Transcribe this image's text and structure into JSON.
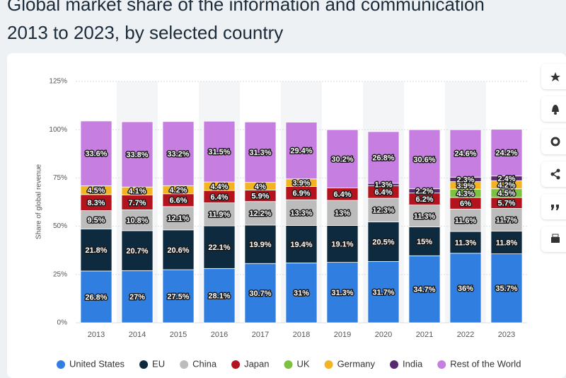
{
  "chart_data": {
    "type": "stacked_bar",
    "title": "Global market share of the information and communication",
    "subtitle": "2013 to 2023, by selected country",
    "y_label": "Share of global revenue",
    "categories": [
      "2013",
      "2014",
      "2015",
      "2016",
      "2017",
      "2018",
      "2019",
      "2020",
      "2021",
      "2022",
      "2023"
    ],
    "ylim": [
      0,
      125
    ],
    "yticks": [
      {
        "value": 0,
        "label": "0%"
      },
      {
        "value": 25,
        "label": "25%"
      },
      {
        "value": 50,
        "label": "50%"
      },
      {
        "value": 75,
        "label": "75%"
      },
      {
        "value": 100,
        "label": "100%"
      },
      {
        "value": 125,
        "label": "125%"
      }
    ],
    "grid": true,
    "legend": "bottom",
    "series": [
      {
        "name": "United States",
        "color": "#2f7ee0",
        "values": [
          26.8,
          27,
          27.5,
          28.1,
          30.7,
          31,
          31.3,
          31.7,
          34.7,
          36,
          35.7
        ],
        "value_labels": [
          "26.8%",
          "27%",
          "27.5%",
          "28.1%",
          "30.7%",
          "31%",
          "31.3%",
          "31.7%",
          "34.7%",
          "36%",
          "35.7%"
        ]
      },
      {
        "name": "EU",
        "color": "#0e2a3e",
        "values": [
          21.8,
          20.7,
          20.6,
          22.1,
          19.9,
          19.4,
          19.1,
          20.5,
          15,
          11.3,
          11.8
        ],
        "value_labels": [
          "21.8%",
          "20.7%",
          "20.6%",
          "22.1%",
          "19.9%",
          "19.4%",
          "19.1%",
          "20.5%",
          "15%",
          "11.3%",
          "11.8%"
        ]
      },
      {
        "name": "China",
        "color": "#bcbcbc",
        "values": [
          9.5,
          10.8,
          12.1,
          11.9,
          12.2,
          13.3,
          13,
          12.3,
          11.3,
          11.6,
          11.7
        ],
        "value_labels": [
          "9.5%",
          "10.8%",
          "12.1%",
          "11.9%",
          "12.2%",
          "13.3%",
          "13%",
          "12.3%",
          "11.3%",
          "11.6%",
          "11.7%"
        ]
      },
      {
        "name": "Japan",
        "color": "#b3131d",
        "values": [
          8.3,
          7.7,
          6.6,
          6.4,
          5.9,
          6.9,
          6.4,
          6.4,
          6.2,
          6,
          5.7
        ],
        "value_labels": [
          "8.3%",
          "7.7%",
          "6.6%",
          "6.4%",
          "5.9%",
          "6.9%",
          "6.4%",
          "6.4%",
          "6.2%",
          "6%",
          "5.7%"
        ]
      },
      {
        "name": "UK",
        "color": "#7cc142",
        "values": [
          null,
          null,
          null,
          null,
          null,
          null,
          null,
          null,
          null,
          4.3,
          4.5
        ],
        "value_labels": [
          null,
          null,
          null,
          null,
          null,
          null,
          null,
          null,
          null,
          "4.3%",
          "4.5%"
        ]
      },
      {
        "name": "Germany",
        "color": "#f3b421",
        "values": [
          4.5,
          4.1,
          4.2,
          4.4,
          4,
          3.9,
          null,
          null,
          null,
          3.9,
          4.2
        ],
        "value_labels": [
          "4.5%",
          "4.1%",
          "4.2%",
          "4.4%",
          "4%",
          "3.9%",
          null,
          null,
          null,
          "3.9%",
          "4.2%"
        ]
      },
      {
        "name": "India",
        "color": "#5a2870",
        "values": [
          null,
          null,
          null,
          null,
          null,
          null,
          null,
          1.3,
          2.2,
          2.3,
          2.4
        ],
        "value_labels": [
          null,
          null,
          null,
          null,
          null,
          null,
          null,
          "1.3%",
          "2.2%",
          "2.3%",
          "2.4%"
        ]
      },
      {
        "name": "Rest of the World",
        "color": "#c67fe0",
        "values": [
          33.6,
          33.8,
          33.2,
          31.5,
          31.3,
          29.4,
          30.2,
          26.8,
          30.6,
          24.6,
          24.2
        ],
        "value_labels": [
          "33.6%",
          "33.8%",
          "33.2%",
          "31.5%",
          "31.3%",
          "29.4%",
          "30.2%",
          "26.8%",
          "30.6%",
          "24.6%",
          "24.2%"
        ]
      }
    ]
  }
}
